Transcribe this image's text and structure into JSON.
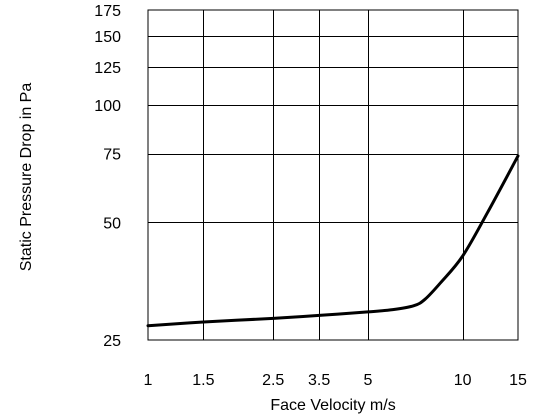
{
  "chart_data": {
    "type": "line",
    "xlabel": "Face Velocity m/s",
    "ylabel": "Static Pressure Drop in Pa",
    "x_scale": "log",
    "y_scale": "log",
    "xlim": [
      1,
      15
    ],
    "ylim": [
      25,
      175
    ],
    "grid": true,
    "x_ticks": [
      1,
      1.5,
      2.5,
      3.5,
      5,
      10,
      15
    ],
    "y_ticks": [
      25,
      50,
      75,
      100,
      125,
      150,
      175
    ],
    "series": [
      {
        "color": "#000000",
        "points": [
          {
            "x": 1,
            "y": 27.2
          },
          {
            "x": 1.5,
            "y": 27.8
          },
          {
            "x": 2.5,
            "y": 28.4
          },
          {
            "x": 3.5,
            "y": 28.9
          },
          {
            "x": 5,
            "y": 29.5
          },
          {
            "x": 6,
            "y": 29.9
          },
          {
            "x": 7,
            "y": 30.6
          },
          {
            "x": 7.6,
            "y": 31.8
          },
          {
            "x": 8.5,
            "y": 35
          },
          {
            "x": 10,
            "y": 41
          },
          {
            "x": 12,
            "y": 53
          },
          {
            "x": 15,
            "y": 74
          }
        ]
      }
    ]
  }
}
